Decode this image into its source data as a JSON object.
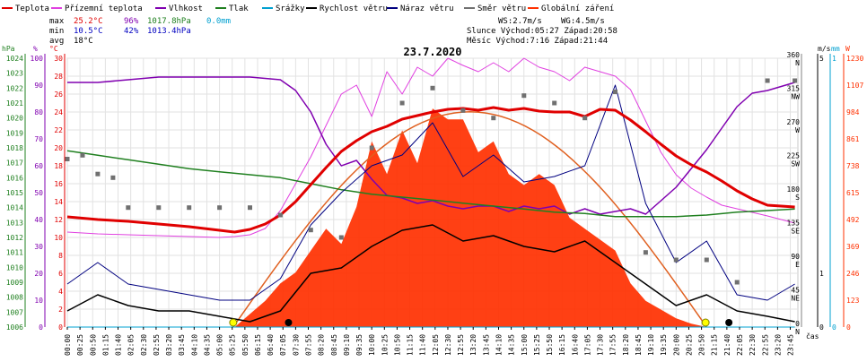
{
  "legend": [
    {
      "label": "Teplota",
      "color": "#e00000"
    },
    {
      "label": "Přízemní teplota",
      "color": "#e040e0"
    },
    {
      "label": "Vlhkost",
      "color": "#8000b0"
    },
    {
      "label": "Tlak",
      "color": "#208020"
    },
    {
      "label": "Srážky",
      "color": "#00a0d0"
    },
    {
      "label": "Rychlost větru",
      "color": "#000000"
    },
    {
      "label": "Náraz větru",
      "color": "#000080"
    },
    {
      "label": "Směr větru",
      "color": "#707070"
    },
    {
      "label": "Globální záření",
      "color": "#ff3000"
    }
  ],
  "stats": {
    "max_label": "max",
    "max_temp": "25.2°C",
    "max_hum": "96%",
    "max_press": "1017.8hPa",
    "rain_total": "0.0mm",
    "min_label": "min",
    "min_temp": "10.5°C",
    "min_hum": "42%",
    "min_press": "1013.4hPa",
    "avg_label": "avg",
    "avg_temp": "18°C"
  },
  "info": {
    "ws": "WS:2.7m/s",
    "wg": "WG:4.5m/s",
    "sun": "Slunce Východ:05:27 Západ:20:58",
    "moon": "Měsíc Východ:7:16 Západ:21:44"
  },
  "axis_units": {
    "hpa": "hPa",
    "pct": "%",
    "degc": "°C",
    "ms": "m/s",
    "mm": "mm",
    "w": "W",
    "cas": "čas"
  },
  "chart_data": {
    "type": "line",
    "title": "23.7.2020",
    "x_ticks": [
      "00:00",
      "00:25",
      "00:50",
      "01:15",
      "01:40",
      "02:05",
      "02:30",
      "02:55",
      "03:20",
      "03:45",
      "04:10",
      "04:35",
      "05:00",
      "05:25",
      "05:50",
      "06:15",
      "06:40",
      "07:05",
      "07:30",
      "07:55",
      "08:20",
      "08:45",
      "09:10",
      "09:35",
      "10:00",
      "10:25",
      "10:50",
      "11:15",
      "11:40",
      "12:05",
      "12:30",
      "12:55",
      "13:20",
      "13:45",
      "14:10",
      "14:35",
      "15:00",
      "15:25",
      "15:50",
      "16:15",
      "16:40",
      "17:05",
      "17:30",
      "17:55",
      "18:20",
      "18:45",
      "19:10",
      "19:35",
      "20:00",
      "20:25",
      "20:50",
      "21:15",
      "21:40",
      "22:05",
      "22:30",
      "22:55",
      "23:20",
      "23:45"
    ],
    "axes": {
      "pressure_hpa": {
        "range": [
          1006,
          1024
        ],
        "ticks": [
          "1006",
          "1007",
          "1008",
          "1009",
          "1010",
          "1011",
          "1012",
          "1013",
          "1014",
          "1015",
          "1016",
          "1017",
          "1018",
          "1019",
          "1020",
          "1021",
          "1022",
          "1023",
          "1024"
        ]
      },
      "humidity_pct": {
        "range": [
          0,
          100
        ],
        "ticks": [
          "0",
          "10",
          "20",
          "30",
          "40",
          "50",
          "60",
          "70",
          "80",
          "90",
          "100"
        ]
      },
      "temperature_c": {
        "range": [
          0,
          30
        ],
        "ticks": [
          "0",
          "2",
          "4",
          "6",
          "8",
          "10",
          "12",
          "14",
          "16",
          "18",
          "20",
          "22",
          "24",
          "26",
          "28",
          "30"
        ]
      },
      "wind_dir": {
        "range": [
          0,
          360
        ],
        "ticks": [
          {
            "v": 0,
            "deg": "0",
            "dir": "N"
          },
          {
            "v": 45,
            "deg": "45",
            "dir": "NE"
          },
          {
            "v": 90,
            "deg": "90",
            "dir": "E"
          },
          {
            "v": 135,
            "deg": "135",
            "dir": "SE"
          },
          {
            "v": 180,
            "deg": "180",
            "dir": "S"
          },
          {
            "v": 225,
            "deg": "225",
            "dir": "SW"
          },
          {
            "v": 270,
            "deg": "270",
            "dir": "W"
          },
          {
            "v": 315,
            "deg": "315",
            "dir": "NW"
          },
          {
            "v": 360,
            "deg": "360",
            "dir": "N"
          }
        ]
      },
      "wind_ms": {
        "range": [
          0,
          5
        ],
        "ticks": [
          "0",
          "1",
          "5"
        ]
      },
      "rain_mm": {
        "range": [
          0,
          1
        ],
        "ticks": [
          "0",
          "1"
        ]
      },
      "radiation_w": {
        "range": [
          0,
          1230
        ],
        "ticks": [
          "0",
          "123",
          "246",
          "369",
          "492",
          "615",
          "738",
          "861",
          "984",
          "1107",
          "1230"
        ]
      }
    },
    "series": [
      {
        "name": "Teplota",
        "unit": "°C",
        "x": [
          0,
          1,
          2,
          3,
          4,
          5,
          5.5,
          6,
          6.5,
          7,
          7.5,
          8,
          8.5,
          9,
          9.5,
          10,
          10.5,
          11,
          11.5,
          12,
          12.5,
          13,
          13.5,
          14,
          14.5,
          15,
          15.5,
          16,
          16.5,
          17,
          17.5,
          18,
          18.5,
          19,
          19.5,
          20,
          20.5,
          21,
          21.5,
          22,
          22.5,
          23,
          23.9
        ],
        "y": [
          12.3,
          12.0,
          11.8,
          11.5,
          11.2,
          10.8,
          10.6,
          10.9,
          11.5,
          12.5,
          14.0,
          15.9,
          17.8,
          19.6,
          20.8,
          21.8,
          22.4,
          23.2,
          23.6,
          24.0,
          24.3,
          24.4,
          24.2,
          24.5,
          24.2,
          24.4,
          24.1,
          24.0,
          24.0,
          23.5,
          24.3,
          24.2,
          23.1,
          21.8,
          20.4,
          19.1,
          18.1,
          17.3,
          16.3,
          15.2,
          14.3,
          13.6,
          13.4
        ]
      },
      {
        "name": "Přízemní teplota",
        "unit": "°C",
        "x": [
          0,
          1,
          2,
          3,
          4,
          5,
          5.5,
          6,
          6.5,
          7,
          7.5,
          8,
          8.5,
          9,
          9.5,
          10,
          10.5,
          11,
          11.5,
          12,
          12.5,
          13,
          13.5,
          14,
          14.5,
          15,
          15.5,
          16,
          16.5,
          17,
          17.5,
          18,
          18.5,
          19,
          19.5,
          20,
          20.5,
          21,
          21.5,
          22,
          22.5,
          23,
          23.9
        ],
        "y": [
          10.6,
          10.4,
          10.3,
          10.2,
          10.1,
          10.0,
          10.1,
          10.3,
          11.0,
          13.0,
          16.0,
          19.0,
          22.5,
          26.0,
          27.0,
          23.5,
          28.5,
          26.0,
          29.0,
          28.0,
          30.0,
          29.2,
          28.5,
          29.5,
          28.5,
          30.0,
          29.0,
          28.5,
          27.5,
          29.0,
          28.5,
          28.0,
          26.5,
          23.0,
          19.5,
          17.0,
          15.5,
          14.5,
          13.6,
          13.2,
          12.8,
          12.4,
          11.6
        ]
      },
      {
        "name": "Vlhkost",
        "unit": "%",
        "x": [
          0,
          1,
          2,
          3,
          4,
          5,
          6,
          7,
          7.5,
          8,
          8.5,
          9,
          9.5,
          10,
          10.5,
          11,
          11.5,
          12,
          12.5,
          13,
          13.5,
          14,
          14.5,
          15,
          15.5,
          16,
          16.5,
          17,
          17.5,
          18,
          18.5,
          19,
          19.5,
          20,
          20.5,
          21,
          21.5,
          22,
          22.5,
          23,
          23.9
        ],
        "y": [
          91,
          91,
          92,
          93,
          93,
          93,
          93,
          92,
          88,
          80,
          68,
          60,
          62,
          55,
          49,
          48,
          46,
          47,
          45,
          44,
          45,
          45,
          43,
          45,
          44,
          45,
          42,
          44,
          42,
          43,
          44,
          42,
          47,
          52,
          59,
          66,
          74,
          82,
          87,
          88,
          91
        ]
      },
      {
        "name": "Tlak",
        "unit": "hPa",
        "x": [
          0,
          1,
          2,
          3,
          4,
          5,
          6,
          7,
          8,
          9,
          10,
          11,
          12,
          13,
          14,
          15,
          16,
          17,
          18,
          19,
          20,
          21,
          22,
          23,
          23.9
        ],
        "y": [
          1017.8,
          1017.5,
          1017.2,
          1016.9,
          1016.6,
          1016.4,
          1016.2,
          1016.0,
          1015.6,
          1015.2,
          1014.9,
          1014.7,
          1014.5,
          1014.3,
          1014.1,
          1013.9,
          1013.7,
          1013.6,
          1013.4,
          1013.4,
          1013.4,
          1013.5,
          1013.7,
          1013.8,
          1013.9
        ]
      },
      {
        "name": "Srážky",
        "unit": "mm",
        "x": [
          0,
          23.9
        ],
        "y": [
          0,
          0
        ]
      },
      {
        "name": "Rychlost větru",
        "unit": "m/s",
        "x": [
          0,
          1,
          2,
          3,
          4,
          5,
          6,
          7,
          8,
          9,
          10,
          11,
          12,
          13,
          14,
          15,
          16,
          17,
          18,
          19,
          20,
          21,
          22,
          23,
          23.9
        ],
        "y": [
          0.3,
          0.6,
          0.4,
          0.3,
          0.3,
          0.2,
          0.1,
          0.3,
          1.0,
          1.1,
          1.5,
          1.8,
          1.9,
          1.6,
          1.7,
          1.5,
          1.4,
          1.6,
          1.2,
          0.8,
          0.4,
          0.6,
          0.3,
          0.2,
          0.1
        ]
      },
      {
        "name": "Náraz větru",
        "unit": "m/s",
        "x": [
          0,
          1,
          2,
          3,
          4,
          5,
          6,
          7,
          8,
          9,
          10,
          11,
          12,
          13,
          14,
          15,
          16,
          17,
          18,
          19,
          20,
          21,
          22,
          23,
          23.9
        ],
        "y": [
          0.8,
          1.2,
          0.8,
          0.7,
          0.6,
          0.5,
          0.5,
          0.9,
          1.9,
          2.5,
          3.0,
          3.2,
          3.8,
          2.8,
          3.2,
          2.7,
          2.8,
          3.0,
          4.5,
          2.3,
          1.2,
          1.6,
          0.6,
          0.5,
          0.8
        ]
      },
      {
        "name": "Směr větru",
        "unit": "°",
        "x": [
          0,
          0.5,
          1,
          1.5,
          2,
          3,
          4,
          5,
          6,
          7,
          8,
          9,
          10,
          11,
          12,
          13,
          14,
          15,
          16,
          17,
          18,
          19,
          20,
          21,
          22,
          23,
          23.9
        ],
        "y": [
          225,
          230,
          205,
          200,
          160,
          160,
          160,
          160,
          160,
          150,
          130,
          120,
          240,
          300,
          320,
          290,
          280,
          310,
          300,
          280,
          315,
          100,
          90,
          90,
          60,
          330,
          330
        ]
      },
      {
        "name": "Globální záření",
        "unit": "W",
        "x": [
          5.5,
          6,
          6.5,
          7,
          7.5,
          8,
          8.5,
          9,
          9.5,
          10,
          10.5,
          11,
          11.5,
          12,
          12.5,
          13,
          13.5,
          14,
          14.5,
          15,
          15.5,
          16,
          16.5,
          17,
          17.5,
          18,
          18.5,
          19,
          19.5,
          20,
          20.5,
          21
        ],
        "y": [
          0,
          60,
          120,
          200,
          250,
          350,
          450,
          380,
          550,
          850,
          700,
          900,
          750,
          1000,
          950,
          950,
          800,
          850,
          700,
          650,
          700,
          650,
          500,
          450,
          400,
          350,
          200,
          120,
          80,
          40,
          15,
          0
        ]
      }
    ],
    "clear_sky_radiation_w": {
      "x": [
        5.45,
        21.0
      ],
      "peak": 985
    },
    "sun_markers": [
      {
        "time": "05:27",
        "color": "#ffff00"
      },
      {
        "time": "20:58",
        "color": "#ffff00"
      }
    ],
    "moon_markers": [
      {
        "time": "7:16",
        "color": "#000000"
      },
      {
        "time": "21:44",
        "color": "#000000"
      }
    ],
    "xlabel": "čas"
  }
}
